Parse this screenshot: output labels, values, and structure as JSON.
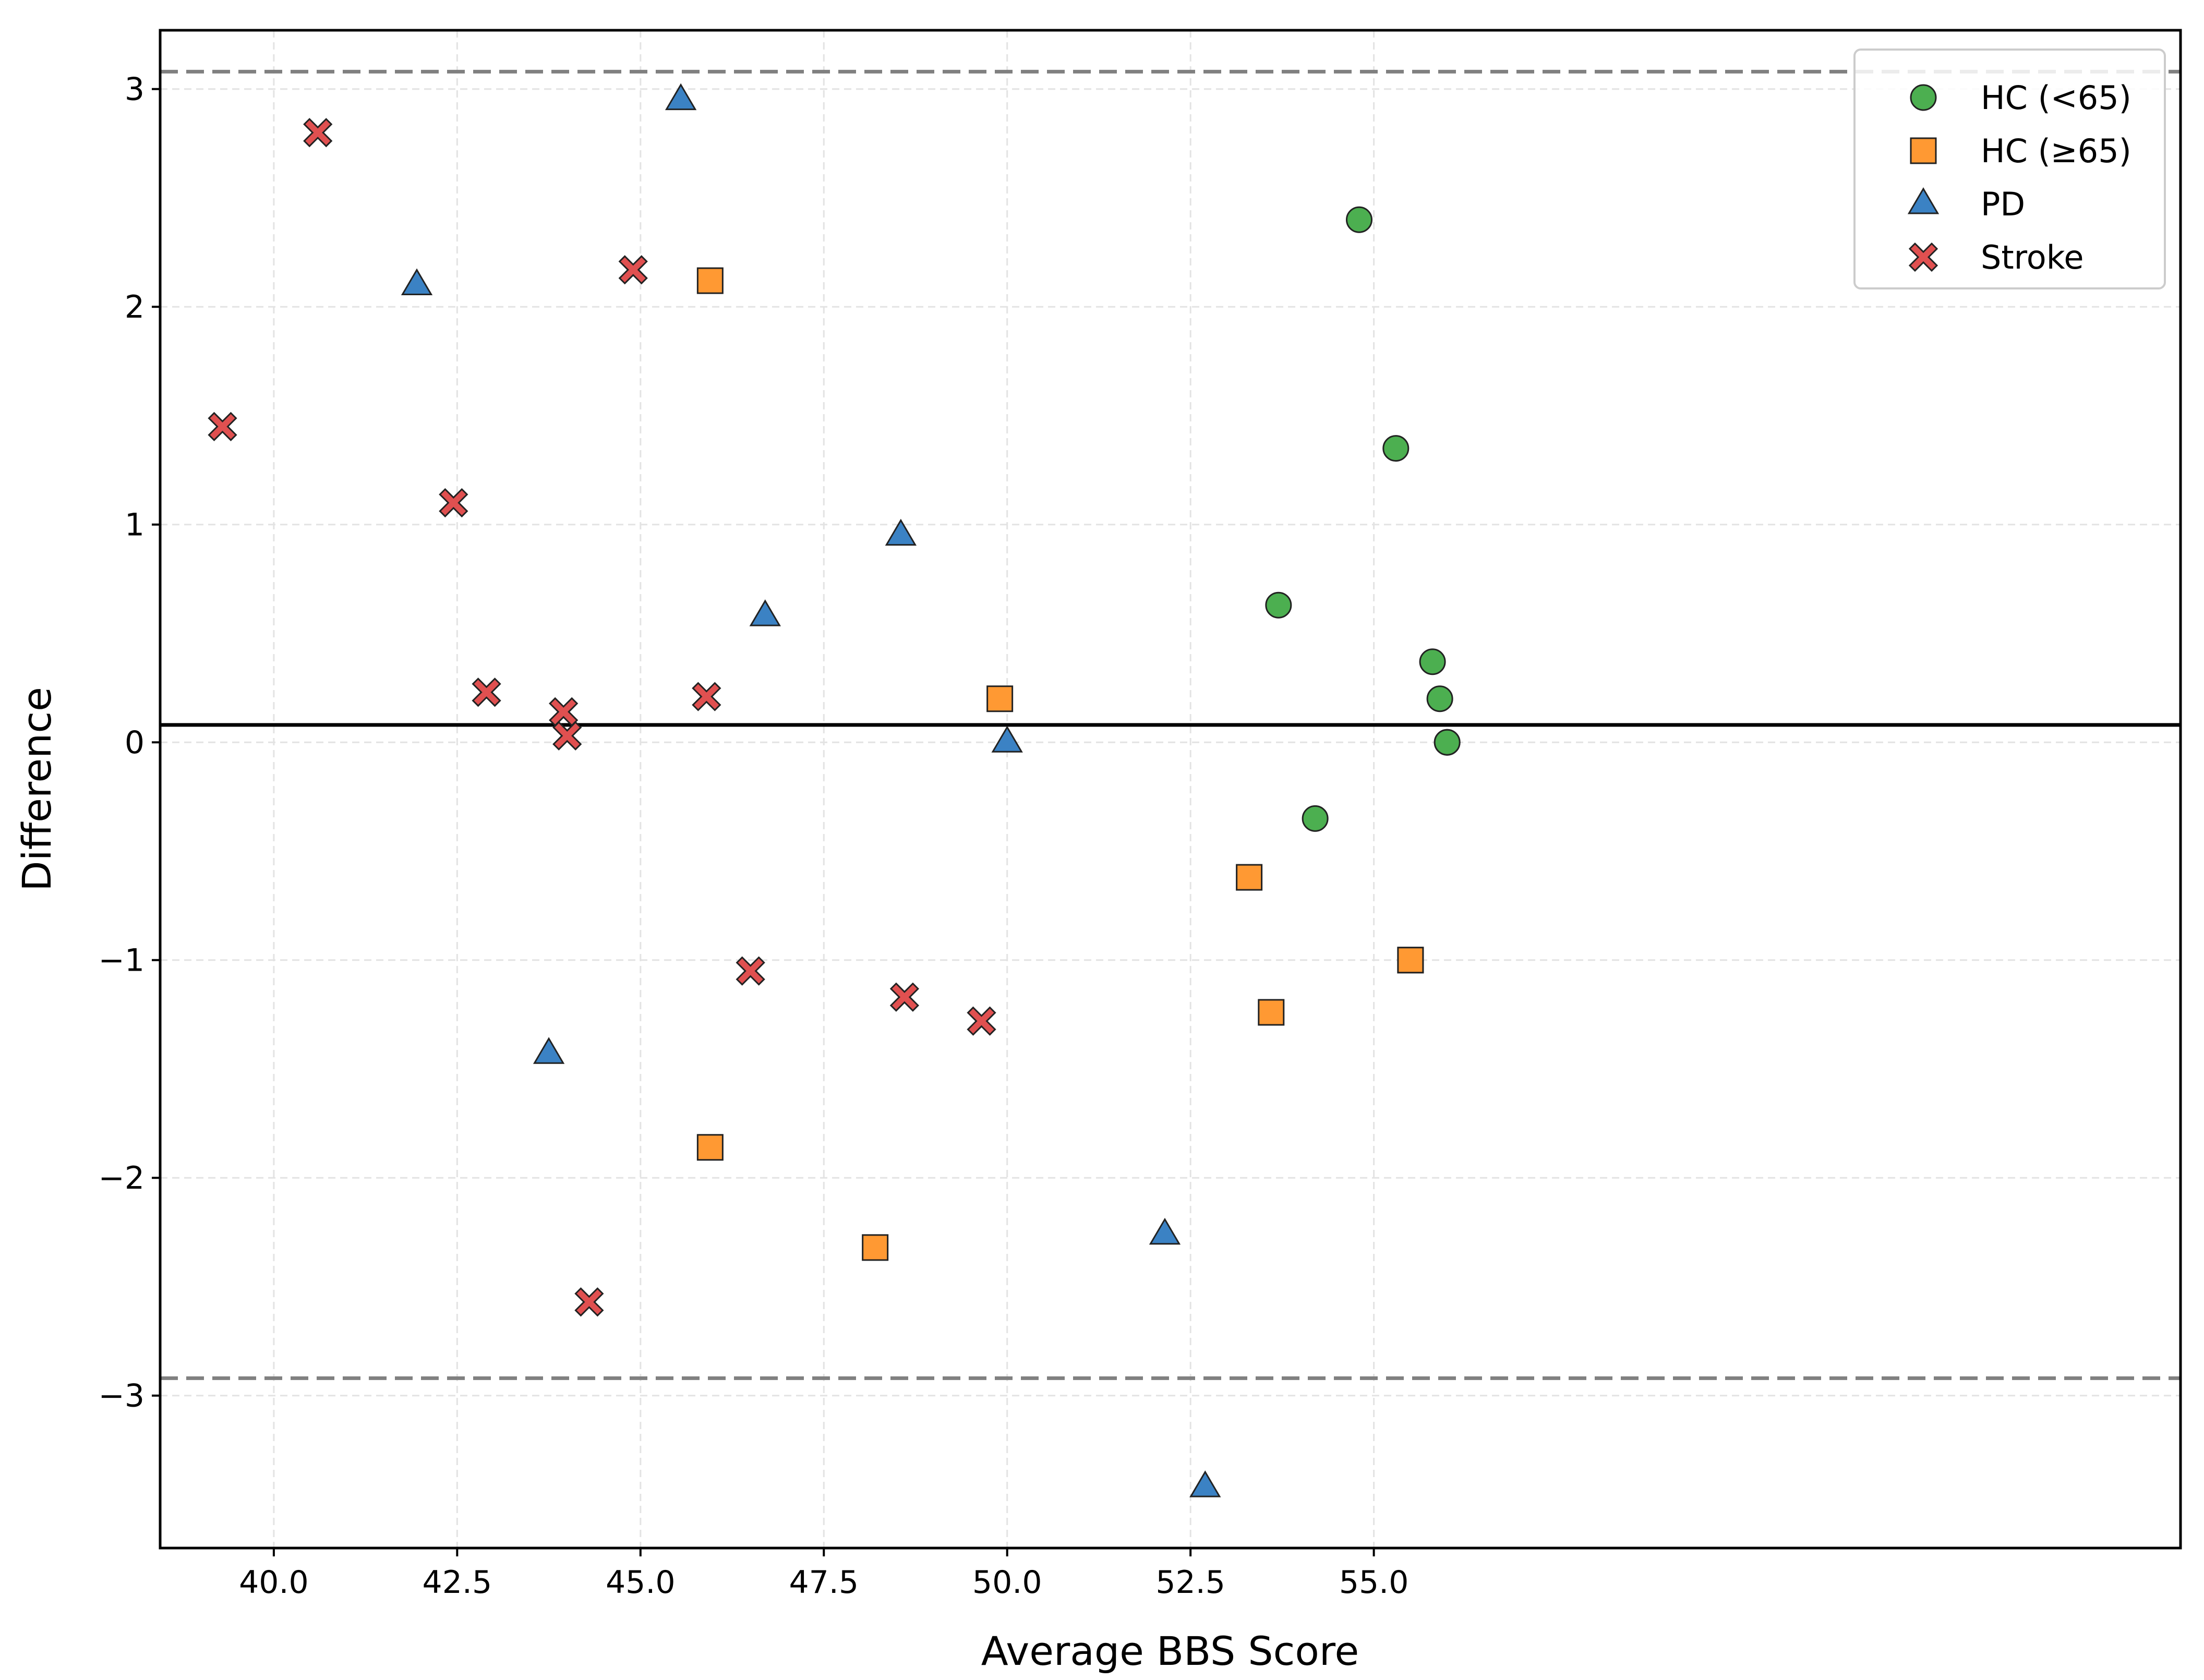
{
  "chart_data": {
    "type": "scatter",
    "title": "",
    "xlabel": "Average BBS Score",
    "ylabel": "Difference",
    "xlim": [
      38.45,
      66.0
    ],
    "ylim": [
      -3.7,
      3.27
    ],
    "xticks": [
      {
        "value": 40.0,
        "label": "40.0"
      },
      {
        "value": 42.5,
        "label": "42.5"
      },
      {
        "value": 45.0,
        "label": "45.0"
      },
      {
        "value": 47.5,
        "label": "47.5"
      },
      {
        "value": 50.0,
        "label": "50.0"
      },
      {
        "value": 52.5,
        "label": "52.5"
      },
      {
        "value": 55.0,
        "label": "55.0"
      }
    ],
    "yticks": [
      {
        "value": 3,
        "label": "3"
      },
      {
        "value": 2,
        "label": "2"
      },
      {
        "value": 1,
        "label": "1"
      },
      {
        "value": 0,
        "label": "0"
      },
      {
        "value": -1,
        "label": "−1"
      },
      {
        "value": -2,
        "label": "−2"
      },
      {
        "value": -3,
        "label": "−3"
      }
    ],
    "grid": true,
    "legend_position": "top-right",
    "reference_lines": {
      "mean_difference": 0.08,
      "upper_limit": 3.08,
      "lower_limit": -2.92
    },
    "series": [
      {
        "name": "HC (<65)",
        "marker": "circle",
        "color": "#4caf50",
        "points": [
          {
            "x": 54.8,
            "y": 2.4
          },
          {
            "x": 55.3,
            "y": 1.35
          },
          {
            "x": 53.7,
            "y": 0.63
          },
          {
            "x": 55.8,
            "y": 0.37
          },
          {
            "x": 55.9,
            "y": 0.2
          },
          {
            "x": 56.0,
            "y": 0.0
          },
          {
            "x": 56.0,
            "y": 0.0
          },
          {
            "x": 54.2,
            "y": -0.35
          }
        ]
      },
      {
        "name": "HC (≥65)",
        "marker": "square",
        "color": "#ff9933",
        "points": [
          {
            "x": 45.95,
            "y": 2.12
          },
          {
            "x": 49.9,
            "y": 0.2
          },
          {
            "x": 53.3,
            "y": -0.62
          },
          {
            "x": 55.5,
            "y": -1.0
          },
          {
            "x": 55.5,
            "y": -1.0
          },
          {
            "x": 53.6,
            "y": -1.24
          },
          {
            "x": 45.95,
            "y": -1.86
          },
          {
            "x": 48.2,
            "y": -2.32
          }
        ]
      },
      {
        "name": "PD",
        "marker": "triangle",
        "color": "#3b82c4",
        "points": [
          {
            "x": 45.55,
            "y": 2.95
          },
          {
            "x": 41.95,
            "y": 2.1
          },
          {
            "x": 48.55,
            "y": 0.95
          },
          {
            "x": 46.7,
            "y": 0.58
          },
          {
            "x": 50.0,
            "y": 0.0
          },
          {
            "x": 43.75,
            "y": -1.43
          },
          {
            "x": 52.15,
            "y": -2.26
          },
          {
            "x": 52.7,
            "y": -3.42
          }
        ]
      },
      {
        "name": "Stroke",
        "marker": "x",
        "color": "#e05050",
        "points": [
          {
            "x": 40.6,
            "y": 2.8
          },
          {
            "x": 44.9,
            "y": 2.17
          },
          {
            "x": 39.3,
            "y": 1.45
          },
          {
            "x": 42.45,
            "y": 1.1
          },
          {
            "x": 42.9,
            "y": 0.23
          },
          {
            "x": 45.9,
            "y": 0.21
          },
          {
            "x": 43.95,
            "y": 0.14
          },
          {
            "x": 44.0,
            "y": 0.03
          },
          {
            "x": 46.5,
            "y": -1.05
          },
          {
            "x": 48.6,
            "y": -1.17
          },
          {
            "x": 49.65,
            "y": -1.28
          },
          {
            "x": 44.3,
            "y": -2.57
          }
        ]
      }
    ]
  }
}
